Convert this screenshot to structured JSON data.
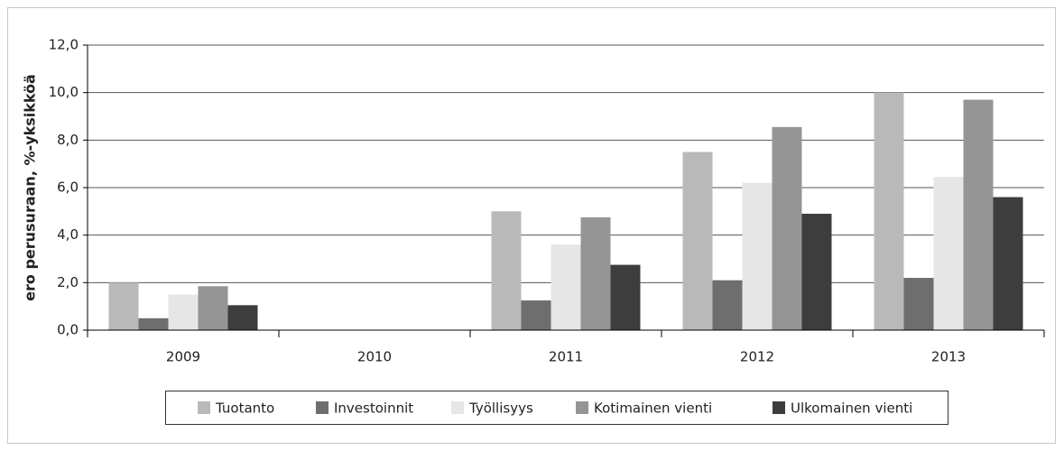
{
  "chart_data": {
    "type": "bar",
    "y_label": "ero perusuraan, %-yksikköä",
    "categories": [
      "2009",
      "2010",
      "2011",
      "2012",
      "2013"
    ],
    "series": [
      {
        "name": "Tuotanto",
        "color": "#b9b9b9",
        "values": [
          2.0,
          0,
          5.0,
          7.5,
          10.0
        ]
      },
      {
        "name": "Investoinnit",
        "color": "#6e6e6e",
        "values": [
          0.5,
          0,
          1.25,
          2.1,
          2.2
        ]
      },
      {
        "name": "Työllisyys",
        "color": "#e6e6e6",
        "values": [
          1.5,
          0,
          3.6,
          6.2,
          6.45
        ]
      },
      {
        "name": "Kotimainen vienti",
        "color": "#959595",
        "values": [
          1.85,
          0,
          4.75,
          8.55,
          9.7
        ]
      },
      {
        "name": "Ulkomainen vienti",
        "color": "#3d3d3d",
        "values": [
          1.05,
          0,
          2.75,
          4.9,
          5.6
        ]
      }
    ],
    "ylim": [
      0,
      12
    ],
    "yticks": [
      {
        "value": 0,
        "label": "0,0"
      },
      {
        "value": 2,
        "label": "2,0"
      },
      {
        "value": 4,
        "label": "4,0"
      },
      {
        "value": 6,
        "label": "6,0"
      },
      {
        "value": 8,
        "label": "8,0"
      },
      {
        "value": 10,
        "label": "10,0"
      },
      {
        "value": 12,
        "label": "12,0"
      }
    ],
    "grid": true
  }
}
